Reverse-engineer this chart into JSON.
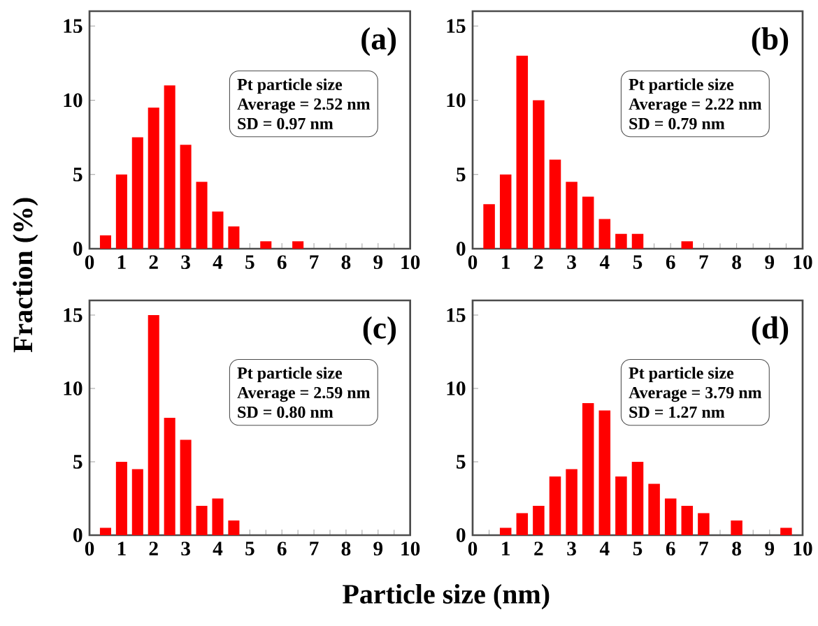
{
  "chart_data": [
    {
      "type": "bar",
      "title": "(a)",
      "ylabel": "Fraction (%)",
      "annotations": [
        "Pt particle size",
        "Average = 2.52 nm",
        "SD = 0.97 nm"
      ],
      "color": "#ff0000",
      "x": [
        0.5,
        1,
        1.5,
        2,
        2.5,
        3,
        3.5,
        4,
        4.5,
        5.5,
        6.5
      ],
      "values": [
        0.9,
        5,
        7.5,
        9.5,
        11,
        7,
        4.5,
        2.5,
        1.5,
        0.5,
        0.5
      ],
      "xlim": [
        0,
        10
      ],
      "xticks": [
        0,
        1,
        2,
        3,
        4,
        5,
        6,
        7,
        8,
        9,
        10
      ],
      "ylim": [
        0,
        16
      ],
      "yticks": [
        0,
        5,
        10,
        15
      ]
    },
    {
      "type": "bar",
      "title": "(b)",
      "annotations": [
        "Pt particle size",
        "Average = 2.22 nm",
        "SD = 0.79 nm"
      ],
      "color": "#ff0000",
      "x": [
        0.5,
        1,
        1.5,
        2,
        2.5,
        3,
        3.5,
        4,
        4.5,
        5,
        6.5
      ],
      "values": [
        3,
        5,
        13,
        10,
        6,
        4.5,
        3.5,
        2,
        1,
        1,
        0.5
      ],
      "xlim": [
        0,
        10
      ],
      "xticks": [
        0,
        1,
        2,
        3,
        4,
        5,
        6,
        7,
        8,
        9,
        10
      ],
      "ylim": [
        0,
        16
      ],
      "yticks": [
        0,
        5,
        10,
        15
      ]
    },
    {
      "type": "bar",
      "title": "(c)",
      "annotations": [
        "Pt particle size",
        "Average = 2.59 nm",
        "SD = 0.80 nm"
      ],
      "color": "#ff0000",
      "x": [
        0.5,
        1,
        1.5,
        2,
        2.5,
        3,
        3.5,
        4,
        4.5
      ],
      "values": [
        0.5,
        5,
        4.5,
        15,
        8,
        6.5,
        2,
        2.5,
        1
      ],
      "xlim": [
        0,
        10
      ],
      "xticks": [
        0,
        1,
        2,
        3,
        4,
        5,
        6,
        7,
        8,
        9,
        10
      ],
      "ylim": [
        0,
        16
      ],
      "yticks": [
        0,
        5,
        10,
        15
      ]
    },
    {
      "type": "bar",
      "title": "(d)",
      "xlabel": "Particle size (nm)",
      "annotations": [
        "Pt particle size",
        "Average = 3.79 nm",
        "SD = 1.27 nm"
      ],
      "color": "#ff0000",
      "x": [
        1,
        1.5,
        2,
        2.5,
        3,
        3.5,
        4,
        4.5,
        5,
        5.5,
        6,
        6.5,
        7,
        8,
        9.5
      ],
      "values": [
        0.5,
        1.5,
        2,
        4,
        4.5,
        9,
        8.5,
        4,
        5,
        3.5,
        2.5,
        2,
        1.5,
        1,
        0.5
      ],
      "xlim": [
        0,
        10
      ],
      "xticks": [
        0,
        1,
        2,
        3,
        4,
        5,
        6,
        7,
        8,
        9,
        10
      ],
      "ylim": [
        0,
        16
      ],
      "yticks": [
        0,
        5,
        10,
        15
      ]
    }
  ]
}
